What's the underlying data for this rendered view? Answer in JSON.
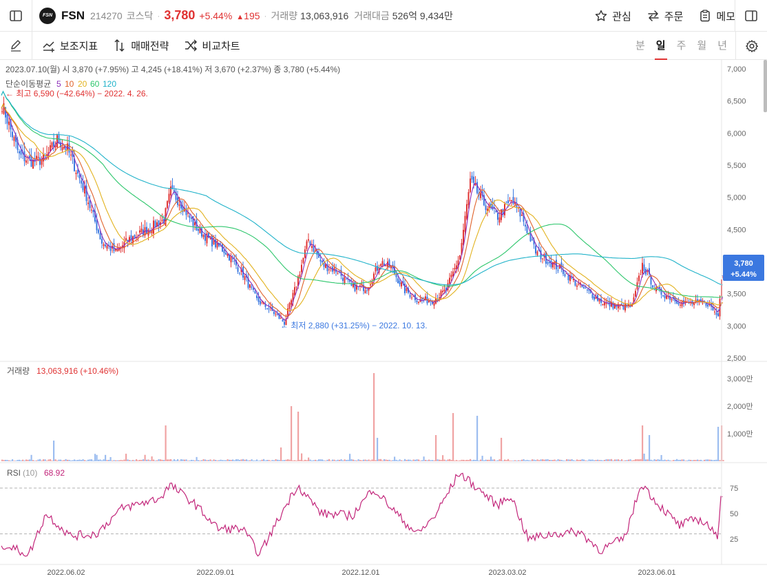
{
  "header": {
    "ticker": "FSN",
    "code": "214270",
    "market": "코스닥",
    "price": "3,780",
    "change_pct": "+5.44%",
    "change": "195",
    "volume_label": "거래량",
    "volume": "13,063,916",
    "amount_label": "거래대금",
    "amount": "526억 9,434만",
    "actions": [
      "관심",
      "주문",
      "메모"
    ]
  },
  "toolbar": {
    "items": [
      "보조지표",
      "매매전략",
      "비교차트"
    ],
    "periods": [
      "분",
      "일",
      "주",
      "월",
      "년"
    ],
    "active_period": "일"
  },
  "colors": {
    "up": "#e03232",
    "down": "#3b78e0",
    "ma5": "#8b2bb8",
    "ma10": "#e0622a",
    "ma20": "#e2b21e",
    "ma60": "#2cc66b",
    "ma120": "#1fb2c9",
    "rsi": "#c2257a"
  },
  "chart_data": [
    {
      "type": "candlestick",
      "title": "",
      "ohlc_label": "2023.07.10(월)  시 3,870 (+7.95%)  고 4,245 (+18.41%)  저 3,670 (+2.37%)  종 3,780 (+5.44%)",
      "legend_prefix": "단순이동평균",
      "ma_periods": [
        "5",
        "10",
        "20",
        "60",
        "120"
      ],
      "high_annotation": "← 최고 6,590 (−42.64%) − 2022. 4. 26.",
      "low_annotation": "← 최저 2,880 (+31.25%) − 2022. 10. 13.",
      "y_ticks": [
        "7,000",
        "6,500",
        "6,000",
        "5,500",
        "5,000",
        "4,500",
        "4,000",
        "3,500",
        "3,000",
        "2,500"
      ],
      "ylim": [
        2500,
        7000
      ],
      "x_ticks": [
        "2022.06.02",
        "2022.09.01",
        "2022.12.01",
        "2023.03.02",
        "2023.06.01"
      ],
      "current_price_tag": "3,780",
      "current_pct_tag": "+5.44%",
      "anchor_closes": [
        [
          0,
          6450
        ],
        [
          10,
          5650
        ],
        [
          18,
          5550
        ],
        [
          25,
          5600
        ],
        [
          32,
          5900
        ],
        [
          38,
          5750
        ],
        [
          48,
          5100
        ],
        [
          58,
          4300
        ],
        [
          66,
          4150
        ],
        [
          74,
          4350
        ],
        [
          84,
          4500
        ],
        [
          94,
          4650
        ],
        [
          98,
          5100
        ],
        [
          104,
          4900
        ],
        [
          112,
          4550
        ],
        [
          120,
          4350
        ],
        [
          130,
          4150
        ],
        [
          140,
          3800
        ],
        [
          148,
          3400
        ],
        [
          156,
          3250
        ],
        [
          164,
          3050
        ],
        [
          170,
          3550
        ],
        [
          178,
          4350
        ],
        [
          186,
          3950
        ],
        [
          195,
          3850
        ],
        [
          203,
          3600
        ],
        [
          212,
          3600
        ],
        [
          220,
          4000
        ],
        [
          226,
          3900
        ],
        [
          234,
          3550
        ],
        [
          242,
          3400
        ],
        [
          250,
          3400
        ],
        [
          258,
          3550
        ],
        [
          266,
          4100
        ],
        [
          272,
          5250
        ],
        [
          280,
          4900
        ],
        [
          288,
          4700
        ],
        [
          296,
          4950
        ],
        [
          302,
          4700
        ],
        [
          310,
          4150
        ],
        [
          318,
          4000
        ],
        [
          326,
          3850
        ],
        [
          334,
          3650
        ],
        [
          342,
          3500
        ],
        [
          350,
          3350
        ],
        [
          358,
          3300
        ],
        [
          366,
          3300
        ],
        [
          372,
          3950
        ],
        [
          380,
          3550
        ],
        [
          388,
          3450
        ],
        [
          396,
          3350
        ],
        [
          404,
          3350
        ],
        [
          410,
          3350
        ],
        [
          416,
          3150
        ],
        [
          418,
          3780
        ]
      ]
    },
    {
      "type": "bar",
      "title": "거래량",
      "value_label": "13,063,916 (+10.46%)",
      "y_ticks": [
        "3,000만",
        "2,000만",
        "1,000만"
      ],
      "spikes": [
        [
          30,
          750
        ],
        [
          95,
          1300
        ],
        [
          162,
          500
        ],
        [
          168,
          2000
        ],
        [
          172,
          1800
        ],
        [
          216,
          3200
        ],
        [
          218,
          850
        ],
        [
          252,
          950
        ],
        [
          262,
          1750
        ],
        [
          276,
          1650
        ],
        [
          290,
          850
        ],
        [
          372,
          1300
        ],
        [
          376,
          950
        ],
        [
          416,
          1250
        ],
        [
          418,
          1300
        ]
      ]
    },
    {
      "type": "line",
      "title": "RSI",
      "period": "(10)",
      "value": "68.92",
      "y_ticks": [
        "75",
        "50",
        "25"
      ],
      "ylim": [
        0,
        100
      ],
      "anchors": [
        [
          0,
          20
        ],
        [
          16,
          10
        ],
        [
          26,
          50
        ],
        [
          40,
          28
        ],
        [
          55,
          30
        ],
        [
          70,
          55
        ],
        [
          92,
          65
        ],
        [
          98,
          78
        ],
        [
          112,
          60
        ],
        [
          126,
          35
        ],
        [
          140,
          35
        ],
        [
          150,
          10
        ],
        [
          166,
          60
        ],
        [
          172,
          78
        ],
        [
          186,
          50
        ],
        [
          204,
          48
        ],
        [
          216,
          75
        ],
        [
          234,
          42
        ],
        [
          242,
          30
        ],
        [
          252,
          48
        ],
        [
          266,
          90
        ],
        [
          280,
          70
        ],
        [
          288,
          58
        ],
        [
          296,
          68
        ],
        [
          306,
          25
        ],
        [
          320,
          30
        ],
        [
          336,
          32
        ],
        [
          348,
          14
        ],
        [
          362,
          26
        ],
        [
          372,
          80
        ],
        [
          380,
          62
        ],
        [
          394,
          38
        ],
        [
          404,
          45
        ],
        [
          410,
          40
        ],
        [
          416,
          25
        ],
        [
          418,
          69
        ]
      ]
    }
  ]
}
